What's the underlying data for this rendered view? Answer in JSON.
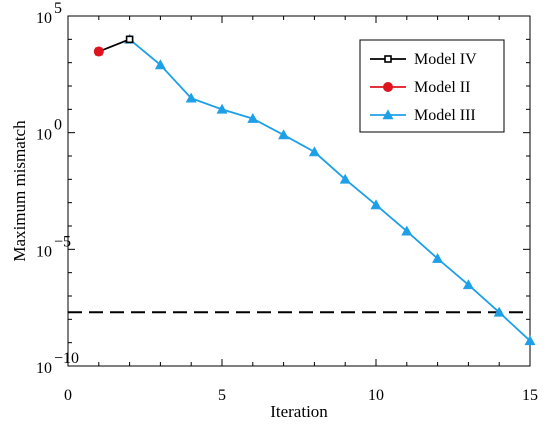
{
  "chart_data": {
    "type": "line",
    "xlabel": "Iteration",
    "ylabel": "Maximum mismatch",
    "xlim": [
      0,
      15
    ],
    "ylim_exponent": [
      -10,
      5
    ],
    "yscale": "log",
    "xticks": [
      "0",
      "5",
      "10",
      "15"
    ],
    "ytick_base": "10",
    "ytick_exponents": [
      "5",
      "0",
      "−5",
      "−10"
    ],
    "legend_position": "top-right",
    "reference_line": {
      "style": "dashed",
      "y": 2e-08
    },
    "series": [
      {
        "name": "Model IV",
        "color": "#000000",
        "marker": "square",
        "x": [
          1,
          2
        ],
        "y": [
          3000,
          10000
        ]
      },
      {
        "name": "Model II",
        "color": "#e0141e",
        "marker": "circle",
        "x": [
          1
        ],
        "y": [
          3000
        ]
      },
      {
        "name": "Model III",
        "color": "#1ea0e8",
        "marker": "triangle",
        "x": [
          2,
          3,
          4,
          5,
          6,
          7,
          8,
          9,
          10,
          11,
          12,
          13,
          14,
          15
        ],
        "y": [
          10000,
          800,
          30,
          10,
          4,
          0.8,
          0.15,
          0.01,
          0.0008,
          6e-05,
          4e-06,
          3e-07,
          2e-08,
          1.2e-09
        ]
      }
    ]
  }
}
